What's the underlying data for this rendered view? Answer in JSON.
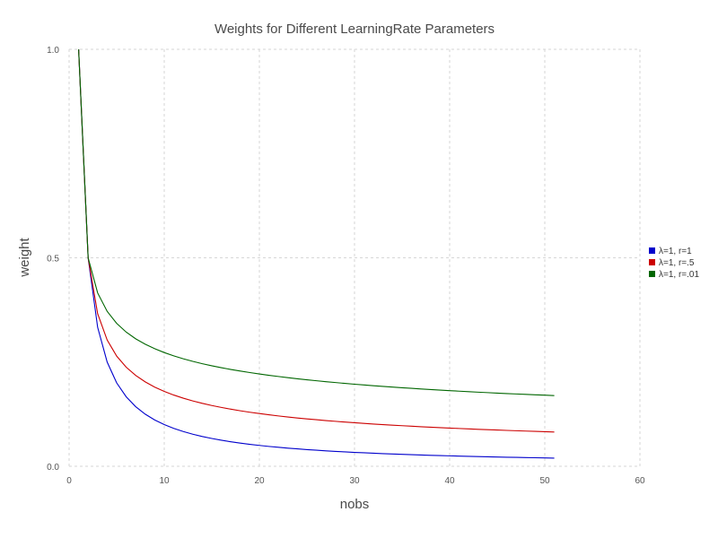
{
  "chart_data": {
    "type": "line",
    "title": "Weights for Different LearningRate Parameters",
    "xlabel": "nobs",
    "ylabel": "weight",
    "xlim": [
      0,
      60
    ],
    "ylim": [
      0,
      1
    ],
    "x_ticks": [
      0,
      10,
      20,
      30,
      40,
      50,
      60
    ],
    "y_ticks": [
      0.0,
      0.5,
      1.0
    ],
    "x_tick_labels": [
      "0",
      "10",
      "20",
      "30",
      "40",
      "50",
      "60"
    ],
    "y_tick_labels": [
      "0.0",
      "0.5",
      "1.0"
    ],
    "grid": true,
    "legend_position": "right",
    "x": [
      1,
      2,
      3,
      4,
      5,
      6,
      7,
      8,
      9,
      10,
      11,
      12,
      13,
      14,
      15,
      16,
      17,
      18,
      19,
      20,
      21,
      22,
      23,
      24,
      25,
      26,
      27,
      28,
      29,
      30,
      31,
      32,
      33,
      34,
      35,
      36,
      37,
      38,
      39,
      40,
      41,
      42,
      43,
      44,
      45,
      46,
      47,
      48,
      49,
      50,
      51
    ],
    "series": [
      {
        "name": "λ=1, r=1",
        "color": "#0000cc",
        "values": [
          1.0,
          0.5,
          0.3333,
          0.25,
          0.2,
          0.1667,
          0.1429,
          0.125,
          0.1111,
          0.1,
          0.0909,
          0.0833,
          0.0769,
          0.0714,
          0.0667,
          0.0625,
          0.0588,
          0.0556,
          0.0526,
          0.05,
          0.0476,
          0.0455,
          0.0435,
          0.0417,
          0.04,
          0.0385,
          0.037,
          0.0357,
          0.0345,
          0.0333,
          0.0323,
          0.0313,
          0.0303,
          0.0294,
          0.0286,
          0.0278,
          0.027,
          0.0263,
          0.0256,
          0.025,
          0.0244,
          0.0238,
          0.0233,
          0.0227,
          0.0222,
          0.0217,
          0.0213,
          0.0208,
          0.0204,
          0.02,
          0.0196
        ]
      },
      {
        "name": "λ=1, r=.5",
        "color": "#cc0000",
        "values": [
          1.0,
          0.5,
          0.366,
          0.3028,
          0.2642,
          0.2376,
          0.2178,
          0.2024,
          0.1899,
          0.1796,
          0.1708,
          0.1633,
          0.1567,
          0.1509,
          0.1457,
          0.1411,
          0.1369,
          0.1331,
          0.1296,
          0.1264,
          0.1235,
          0.1207,
          0.1182,
          0.1158,
          0.1136,
          0.1116,
          0.1096,
          0.1078,
          0.106,
          0.1044,
          0.1028,
          0.1013,
          0.0999,
          0.0986,
          0.0973,
          0.096,
          0.0948,
          0.0937,
          0.0926,
          0.0916,
          0.0906,
          0.0896,
          0.0886,
          0.0877,
          0.0869,
          0.086,
          0.0852,
          0.0844,
          0.0837,
          0.0829,
          0.0822
        ]
      },
      {
        "name": "λ=1, r=.01",
        "color": "#006600",
        "values": [
          1.0,
          0.5,
          0.4157,
          0.3715,
          0.3427,
          0.3218,
          0.3057,
          0.2927,
          0.2819,
          0.2727,
          0.2648,
          0.2578,
          0.2516,
          0.246,
          0.241,
          0.2364,
          0.2322,
          0.2283,
          0.2247,
          0.2213,
          0.2182,
          0.2153,
          0.2125,
          0.2099,
          0.2074,
          0.2051,
          0.2029,
          0.2008,
          0.1987,
          0.1968,
          0.195,
          0.1932,
          0.1915,
          0.1899,
          0.1884,
          0.1869,
          0.1854,
          0.184,
          0.1827,
          0.1814,
          0.1801,
          0.1789,
          0.1777,
          0.1766,
          0.1755,
          0.1744,
          0.1734,
          0.1724,
          0.1714,
          0.1705,
          0.1695
        ]
      }
    ]
  }
}
